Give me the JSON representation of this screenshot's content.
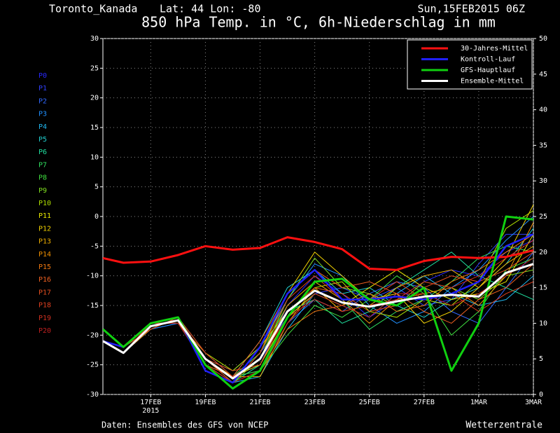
{
  "chart_data": {
    "type": "line",
    "location": "Toronto_Kanada",
    "coords": "Lat: 44 Lon: -80",
    "run": "Sun,15FEB2015 06Z",
    "title": "850 hPa Temp. in °C, 6h-Niederschlag in mm",
    "source": "Daten: Ensembles des GFS von NCEP",
    "brand": "Wetterzentrale",
    "year_label": "2015",
    "x": [
      0.25,
      1,
      2,
      3,
      4,
      5,
      6,
      7,
      8,
      9,
      10,
      11,
      12,
      13,
      14,
      15,
      16
    ],
    "xlim": [
      0.25,
      16
    ],
    "xticks": [
      {
        "value": 2,
        "label": "17FEB"
      },
      {
        "value": 4,
        "label": "19FEB"
      },
      {
        "value": 6,
        "label": "21FEB"
      },
      {
        "value": 8,
        "label": "23FEB"
      },
      {
        "value": 10,
        "label": "25FEB"
      },
      {
        "value": 12,
        "label": "27FEB"
      },
      {
        "value": 14,
        "label": "1MAR"
      },
      {
        "value": 16,
        "label": "3MAR"
      }
    ],
    "ylim": [
      -30,
      30
    ],
    "yticks": [
      -30,
      -25,
      -20,
      -15,
      -10,
      -5,
      0,
      5,
      10,
      15,
      20,
      25,
      30
    ],
    "y2lim": [
      0,
      50
    ],
    "y2ticks": [
      0,
      5,
      10,
      15,
      20,
      25,
      30,
      35,
      40,
      45,
      50
    ],
    "grid": true,
    "legend": "top-right",
    "series": [
      {
        "name": "30-Jahres-Mittel",
        "color": "#ff1010",
        "values": [
          -7,
          -7.8,
          -7.6,
          -6.5,
          -5,
          -5.6,
          -5.3,
          -3.5,
          -4.3,
          -5.5,
          -8.8,
          -9,
          -7.5,
          -6.8,
          -7,
          -6.8,
          -5.7
        ]
      },
      {
        "name": "Kontroll-Lauf",
        "color": "#2020ff",
        "values": [
          -21,
          -22,
          -18,
          -17,
          -26,
          -28,
          -22,
          -13,
          -9,
          -14,
          -14,
          -13.5,
          -14,
          -13,
          -11,
          -5,
          -3
        ]
      },
      {
        "name": "GFS-Hauptlauf",
        "color": "#10d010",
        "values": [
          -19,
          -22,
          -18,
          -17,
          -25,
          -29,
          -26,
          -17,
          -11,
          -10.5,
          -14,
          -15,
          -12,
          -26,
          -18,
          0,
          -0.5
        ]
      },
      {
        "name": "Ensemble-Mittel",
        "color": "#ffffff",
        "values": [
          -21,
          -23,
          -18.5,
          -17.5,
          -24,
          -27.3,
          -24,
          -16,
          -12.5,
          -14.5,
          -15.2,
          -14.3,
          -13.5,
          -13.2,
          -13.5,
          -9.5,
          -8
        ]
      }
    ],
    "members": [
      {
        "name": "P0",
        "color": "#2828ff",
        "values": [
          -21,
          -23,
          -18,
          -17,
          -24,
          -27,
          -25,
          -15,
          -10,
          -13,
          -17,
          -14,
          -11,
          -9,
          -10,
          -6,
          -4
        ]
      },
      {
        "name": "P1",
        "color": "#3040ff",
        "values": [
          -21,
          -23,
          -19,
          -18,
          -25,
          -28,
          -23,
          -17,
          -13,
          -12,
          -14,
          -12,
          -15,
          -14,
          -8,
          -3,
          -3
        ]
      },
      {
        "name": "P2",
        "color": "#3068ff",
        "values": [
          -21,
          -22,
          -18,
          -17,
          -23,
          -27,
          -26,
          -18,
          -14,
          -16,
          -13,
          -11,
          -12,
          -16,
          -18,
          -12,
          -6
        ]
      },
      {
        "name": "P3",
        "color": "#2090ff",
        "values": [
          -21,
          -23,
          -19,
          -18,
          -24,
          -26,
          -22,
          -14,
          -8,
          -10,
          -15,
          -18,
          -16,
          -12,
          -9,
          -4,
          0
        ]
      },
      {
        "name": "P4",
        "color": "#20b8f0",
        "values": [
          -21,
          -22,
          -18,
          -17,
          -25,
          -28,
          -27,
          -19,
          -13,
          -15,
          -17,
          -13,
          -10,
          -13,
          -15,
          -14,
          -10
        ]
      },
      {
        "name": "P5",
        "color": "#20d0d0",
        "values": [
          -21,
          -23,
          -18,
          -18,
          -23,
          -27,
          -21,
          -12,
          -9,
          -13,
          -12,
          -15,
          -17,
          -14,
          -12,
          -8,
          -2
        ]
      },
      {
        "name": "P6",
        "color": "#20e0a0",
        "values": [
          -21,
          -22,
          -19,
          -17,
          -24,
          -28,
          -25,
          -16,
          -14,
          -18,
          -16,
          -12,
          -9,
          -6,
          -10,
          -12,
          -14
        ]
      },
      {
        "name": "P7",
        "color": "#30e060",
        "values": [
          -21,
          -23,
          -18,
          -17,
          -24,
          -27,
          -23,
          -15,
          -11,
          -14,
          -19,
          -16,
          -14,
          -11,
          -7,
          -5,
          -6
        ]
      },
      {
        "name": "P8",
        "color": "#40e040",
        "values": [
          -21,
          -22,
          -18,
          -18,
          -25,
          -27,
          -26,
          -20,
          -15,
          -17,
          -14,
          -10,
          -13,
          -20,
          -16,
          -9,
          -7
        ]
      },
      {
        "name": "P9",
        "color": "#80e020",
        "values": [
          -21,
          -23,
          -19,
          -17,
          -24,
          -28,
          -24,
          -14,
          -7,
          -12,
          -13,
          -15,
          -11,
          -12,
          -14,
          -10,
          -9
        ]
      },
      {
        "name": "P10",
        "color": "#b0e000",
        "values": [
          -21,
          -22,
          -18,
          -17,
          -23,
          -26,
          -22,
          -16,
          -12,
          -11,
          -16,
          -17,
          -14,
          -15,
          -11,
          -2,
          1
        ]
      },
      {
        "name": "P11",
        "color": "#e8e800",
        "values": [
          -21,
          -23,
          -18,
          -18,
          -24,
          -27,
          -25,
          -17,
          -13,
          -15,
          -12,
          -9,
          -12,
          -14,
          -13,
          -11,
          -3
        ]
      },
      {
        "name": "P12",
        "color": "#f0d000",
        "values": [
          -21,
          -22,
          -19,
          -17,
          -25,
          -28,
          -23,
          -13,
          -6,
          -10,
          -14,
          -13,
          -18,
          -16,
          -12,
          -7,
          2
        ]
      },
      {
        "name": "P13",
        "color": "#f0b000",
        "values": [
          -21,
          -23,
          -18,
          -17,
          -24,
          -27,
          -27,
          -18,
          -12,
          -16,
          -15,
          -12,
          -10,
          -9,
          -12,
          -8,
          -5
        ]
      },
      {
        "name": "P14",
        "color": "#f09000",
        "values": [
          -21,
          -22,
          -18,
          -18,
          -23,
          -27,
          -24,
          -15,
          -11,
          -14,
          -18,
          -14,
          -13,
          -12,
          -15,
          -10,
          -1
        ]
      },
      {
        "name": "P15",
        "color": "#f07810",
        "values": [
          -21,
          -23,
          -19,
          -17,
          -24,
          -28,
          -26,
          -19,
          -16,
          -15,
          -13,
          -16,
          -15,
          -11,
          -9,
          -6,
          -3
        ]
      },
      {
        "name": "P16",
        "color": "#f06020",
        "values": [
          -21,
          -22,
          -18,
          -17,
          -25,
          -27,
          -21,
          -13,
          -9,
          -12,
          -11,
          -13,
          -16,
          -18,
          -14,
          -12,
          -8
        ]
      },
      {
        "name": "P17",
        "color": "#e85020",
        "values": [
          -21,
          -23,
          -18,
          -18,
          -24,
          -26,
          -25,
          -16,
          -12,
          -13,
          -16,
          -15,
          -12,
          -10,
          -11,
          -9,
          -6
        ]
      },
      {
        "name": "P18",
        "color": "#e04020",
        "values": [
          -21,
          -22,
          -19,
          -17,
          -24,
          -28,
          -23,
          -14,
          -10,
          -14,
          -14,
          -11,
          -14,
          -13,
          -16,
          -13,
          -11
        ]
      },
      {
        "name": "P19",
        "color": "#d03020",
        "values": [
          -21,
          -23,
          -18,
          -17,
          -23,
          -27,
          -24,
          -17,
          -14,
          -16,
          -15,
          -14,
          -11,
          -12,
          -10,
          -7,
          -4
        ]
      },
      {
        "name": "P20",
        "color": "#c02020",
        "values": [
          -21,
          -22,
          -18,
          -18,
          -25,
          -28,
          -26,
          -18,
          -13,
          -15,
          -17,
          -13,
          -13,
          -15,
          -13,
          -10,
          -7
        ]
      }
    ]
  }
}
